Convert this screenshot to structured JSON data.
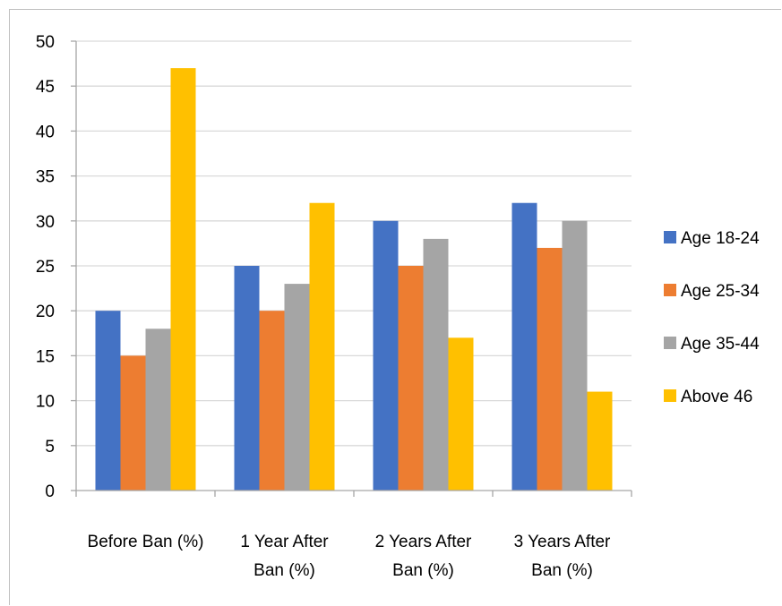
{
  "chart_data": {
    "type": "bar",
    "categories": [
      [
        "Before Ban (%)"
      ],
      [
        "1 Year After",
        "Ban (%)"
      ],
      [
        "2 Years After",
        "Ban (%)"
      ],
      [
        "3 Years After",
        "Ban (%)"
      ]
    ],
    "series": [
      {
        "name": "Age 18-24",
        "color": "#4472c4",
        "values": [
          20,
          25,
          30,
          32
        ]
      },
      {
        "name": "Age 25-34",
        "color": "#ed7d31",
        "values": [
          15,
          20,
          25,
          27
        ]
      },
      {
        "name": "Age 35-44",
        "color": "#a5a5a5",
        "values": [
          18,
          23,
          28,
          30
        ]
      },
      {
        "name": "Above 46",
        "color": "#ffc000",
        "values": [
          47,
          32,
          17,
          11
        ]
      }
    ],
    "ylim": [
      0,
      50
    ],
    "ytick_step": 5,
    "yticks": [
      "0",
      "5",
      "10",
      "15",
      "20",
      "25",
      "30",
      "35",
      "40",
      "45",
      "50"
    ],
    "grid": true,
    "legend_position": "right"
  }
}
